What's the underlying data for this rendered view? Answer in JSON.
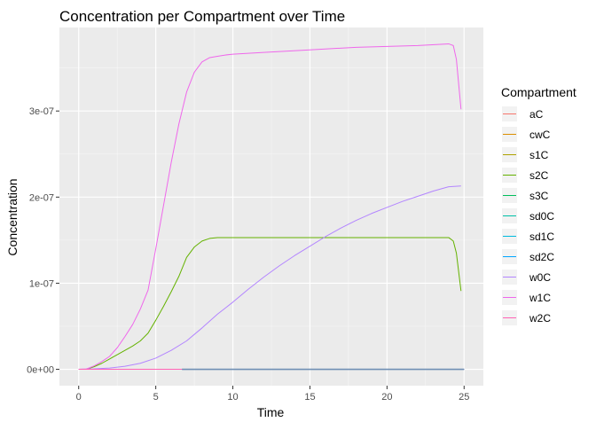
{
  "chart_data": {
    "type": "line",
    "title": "Concentration per Compartment over Time",
    "xlabel": "Time",
    "ylabel": "Concentration",
    "xlim": [
      -1.25,
      26.25
    ],
    "ylim": [
      -1.9e-08,
      3.97e-07
    ],
    "x_ticks": [
      0,
      5,
      10,
      15,
      20,
      25
    ],
    "x_tick_labels": [
      "0",
      "5",
      "10",
      "15",
      "20",
      "25"
    ],
    "y_ticks": [
      0,
      1e-07,
      2e-07,
      3e-07
    ],
    "y_tick_labels": [
      "0e+00",
      "1e-07",
      "2e-07",
      "3e-07"
    ],
    "grid": true,
    "legend": {
      "title": "Compartment",
      "placement": "right",
      "entries": [
        "aC",
        "cwC",
        "s1C",
        "s2C",
        "s3C",
        "sd0C",
        "sd1C",
        "sd2C",
        "w0C",
        "w1C",
        "w2C"
      ]
    },
    "series": [
      {
        "name": "aC",
        "color": "#F8766D",
        "x": [
          0,
          25
        ],
        "y": [
          0,
          0
        ]
      },
      {
        "name": "cwC",
        "color": "#DB8E00",
        "x": [
          0,
          25
        ],
        "y": [
          0,
          0
        ]
      },
      {
        "name": "s1C",
        "color": "#AEA200",
        "x": [
          0,
          25
        ],
        "y": [
          0,
          0
        ]
      },
      {
        "name": "s2C",
        "color": "#64B200",
        "x": [
          0,
          0.5,
          1,
          1.5,
          2,
          2.5,
          3,
          3.5,
          4,
          4.5,
          5,
          5.5,
          6,
          6.5,
          7,
          7.5,
          8,
          8.5,
          9,
          10,
          12,
          15,
          18,
          20,
          22,
          24,
          24.3,
          24.5,
          24.8
        ],
        "y": [
          0,
          2e-10,
          3e-09,
          7e-09,
          1.2e-08,
          1.7e-08,
          2.2e-08,
          2.7e-08,
          3.3e-08,
          4.2e-08,
          5.7e-08,
          7.3e-08,
          9e-08,
          1.08e-07,
          1.3e-07,
          1.42e-07,
          1.49e-07,
          1.52e-07,
          1.53e-07,
          1.53e-07,
          1.53e-07,
          1.53e-07,
          1.53e-07,
          1.53e-07,
          1.53e-07,
          1.53e-07,
          1.49e-07,
          1.35e-07,
          9.1e-08
        ]
      },
      {
        "name": "s3C",
        "color": "#00BD5C",
        "x": [
          0,
          25
        ],
        "y": [
          0,
          0
        ]
      },
      {
        "name": "sd0C",
        "color": "#00C1A7",
        "x": [
          0,
          25
        ],
        "y": [
          0,
          0
        ]
      },
      {
        "name": "sd1C",
        "color": "#00BADE",
        "x": [
          0,
          25
        ],
        "y": [
          0,
          0
        ]
      },
      {
        "name": "sd2C",
        "color": "#00A6FF",
        "x": [
          6.7,
          25
        ],
        "y": [
          0,
          0
        ]
      },
      {
        "name": "w0C",
        "color": "#B385FF",
        "x": [
          0,
          1,
          2,
          3,
          4,
          5,
          6,
          7,
          8,
          9,
          10,
          11,
          12,
          13,
          14,
          15,
          16,
          17,
          18,
          19,
          20,
          21,
          22,
          23,
          24,
          24.8
        ],
        "y": [
          0,
          5e-10,
          1.5e-09,
          3.5e-09,
          7e-09,
          1.3e-08,
          2.2e-08,
          3.3e-08,
          4.8e-08,
          6.4e-08,
          7.8e-08,
          9.3e-08,
          1.07e-07,
          1.2e-07,
          1.32e-07,
          1.43e-07,
          1.54e-07,
          1.64e-07,
          1.73e-07,
          1.81e-07,
          1.88e-07,
          1.95e-07,
          2.01e-07,
          2.07e-07,
          2.12e-07,
          2.13e-07
        ]
      },
      {
        "name": "w1C",
        "color": "#EF67EB",
        "x": [
          0,
          0.5,
          1,
          1.5,
          2,
          2.5,
          3,
          3.5,
          4,
          4.5,
          5,
          5.5,
          6,
          6.5,
          7,
          7.5,
          8,
          8.5,
          9,
          9.5,
          10,
          12,
          15,
          18,
          20,
          22,
          24,
          24.3,
          24.5,
          24.8
        ],
        "y": [
          0,
          3e-10,
          4e-09,
          9e-09,
          1.5e-08,
          2.5e-08,
          3.8e-08,
          5.2e-08,
          7e-08,
          9.2e-08,
          1.4e-07,
          1.9e-07,
          2.4e-07,
          2.85e-07,
          3.22e-07,
          3.45e-07,
          3.57e-07,
          3.62e-07,
          3.635e-07,
          3.65e-07,
          3.66e-07,
          3.68e-07,
          3.71e-07,
          3.74e-07,
          3.75e-07,
          3.76e-07,
          3.78e-07,
          3.76e-07,
          3.6e-07,
          3.02e-07
        ]
      },
      {
        "name": "w2C",
        "color": "#FF63B6",
        "x": [
          0,
          25
        ],
        "y": [
          0,
          0
        ]
      }
    ],
    "overlay_color": "#6F8FB4"
  }
}
